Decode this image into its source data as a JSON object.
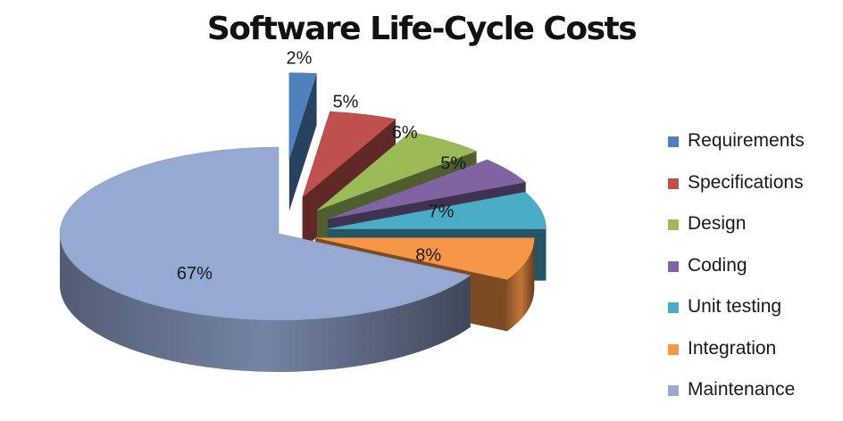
{
  "chart_data": {
    "type": "pie",
    "title": "Software Life-Cycle Costs",
    "categories": [
      "Requirements",
      "Specifications",
      "Design",
      "Coding",
      "Unit testing",
      "Integration",
      "Maintenance"
    ],
    "values": [
      2,
      5,
      6,
      5,
      7,
      8,
      67
    ],
    "data_labels": [
      "2%",
      "5%",
      "6%",
      "5%",
      "7%",
      "8%",
      "67%"
    ],
    "colors": [
      "#4f81bd",
      "#c0504d",
      "#9bbb59",
      "#8064a2",
      "#4bacc6",
      "#f79646",
      "#95a9d3"
    ],
    "style": "3D exploded pie",
    "legend_position": "right"
  }
}
